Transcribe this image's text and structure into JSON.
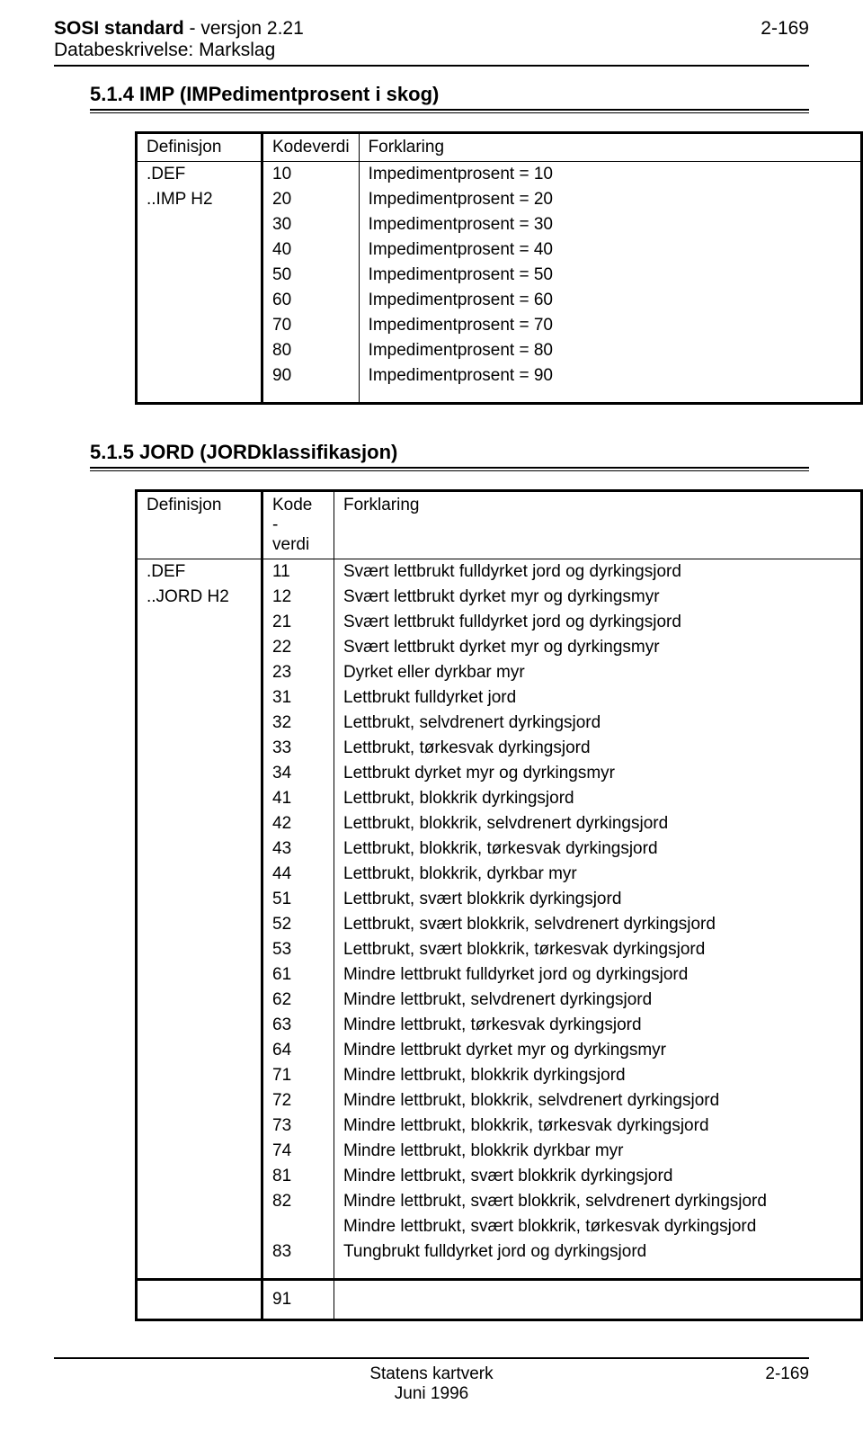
{
  "header": {
    "titleBold": "SOSI standard",
    "titleRest": " - versjon 2.21",
    "pageNum": "2-169",
    "subTitle": "Databeskrivelse: Markslag"
  },
  "section1": {
    "title": "5.1.4  IMP  (IMPedimentprosent i skog)",
    "headers": [
      "Definisjon",
      "Kodeverdi",
      "Forklaring"
    ],
    "defs": [
      ".DEF",
      "..IMP  H2"
    ],
    "rows": [
      {
        "code": "10",
        "text": "Impedimentprosent = 10"
      },
      {
        "code": "20",
        "text": "Impedimentprosent = 20"
      },
      {
        "code": "30",
        "text": "Impedimentprosent = 30"
      },
      {
        "code": "40",
        "text": "Impedimentprosent = 40"
      },
      {
        "code": "50",
        "text": "Impedimentprosent = 50"
      },
      {
        "code": "60",
        "text": "Impedimentprosent = 60"
      },
      {
        "code": "70",
        "text": "Impedimentprosent = 70"
      },
      {
        "code": "80",
        "text": "Impedimentprosent = 80"
      },
      {
        "code": "90",
        "text": "Impedimentprosent = 90"
      }
    ]
  },
  "section2": {
    "title": "5.1.5  JORD  (JORDklassifikasjon)",
    "headers": [
      "Definisjon",
      "Kode-verdi",
      "Forklaring"
    ],
    "defs": [
      ".DEF",
      "..JORD  H2"
    ],
    "rows": [
      {
        "code": "11",
        "text": "Svært lettbrukt fulldyrket jord og dyrkingsjord"
      },
      {
        "code": "12",
        "text": "Svært lettbrukt dyrket myr og dyrkingsmyr"
      },
      {
        "code": "21",
        "text": "Svært lettbrukt fulldyrket jord og dyrkingsjord"
      },
      {
        "code": "22",
        "text": "Svært lettbrukt dyrket myr og dyrkingsmyr"
      },
      {
        "code": "23",
        "text": "Dyrket eller dyrkbar myr"
      },
      {
        "code": "31",
        "text": "Lettbrukt fulldyrket jord"
      },
      {
        "code": "32",
        "text": "Lettbrukt, selvdrenert dyrkingsjord"
      },
      {
        "code": "33",
        "text": "Lettbrukt, tørkesvak dyrkingsjord"
      },
      {
        "code": "34",
        "text": "Lettbrukt dyrket myr og dyrkingsmyr"
      },
      {
        "code": "41",
        "text": "Lettbrukt, blokkrik dyrkingsjord"
      },
      {
        "code": "42",
        "text": "Lettbrukt, blokkrik, selvdrenert dyrkingsjord"
      },
      {
        "code": "43",
        "text": "Lettbrukt, blokkrik, tørkesvak dyrkingsjord"
      },
      {
        "code": "44",
        "text": "Lettbrukt, blokkrik, dyrkbar myr"
      },
      {
        "code": "51",
        "text": "Lettbrukt, svært blokkrik dyrkingsjord"
      },
      {
        "code": "52",
        "text": "Lettbrukt, svært blokkrik, selvdrenert dyrkingsjord"
      },
      {
        "code": "53",
        "text": "Lettbrukt, svært blokkrik, tørkesvak dyrkingsjord"
      },
      {
        "code": "61",
        "text": "Mindre lettbrukt fulldyrket jord og dyrkingsjord"
      },
      {
        "code": "62",
        "text": "Mindre lettbrukt, selvdrenert dyrkingsjord"
      },
      {
        "code": "63",
        "text": "Mindre lettbrukt, tørkesvak dyrkingsjord"
      },
      {
        "code": "64",
        "text": "Mindre lettbrukt dyrket myr og dyrkingsmyr"
      },
      {
        "code": "71",
        "text": "Mindre lettbrukt, blokkrik dyrkingsjord"
      },
      {
        "code": "72",
        "text": "Mindre lettbrukt, blokkrik, selvdrenert dyrkingsjord"
      },
      {
        "code": "73",
        "text": "Mindre lettbrukt, blokkrik, tørkesvak dyrkingsjord"
      },
      {
        "code": "74",
        "text": "Mindre lettbrukt, blokkrik dyrkbar myr"
      },
      {
        "code": "81",
        "text": "Mindre lettbrukt, svært blokkrik dyrkingsjord"
      },
      {
        "code": "82",
        "text": "Mindre lettbrukt, svært blokkrik, selvdrenert dyrkingsjord"
      },
      {
        "code": "",
        "text": "Mindre lettbrukt, svært blokkrik, tørkesvak dyrkingsjord"
      },
      {
        "code": "83",
        "text": "Tungbrukt fulldyrket jord og dyrkingsjord"
      }
    ],
    "gapCode": "91"
  },
  "footer": {
    "center1": "Statens kartverk",
    "center2": "Juni 1996",
    "right": "2-169"
  }
}
